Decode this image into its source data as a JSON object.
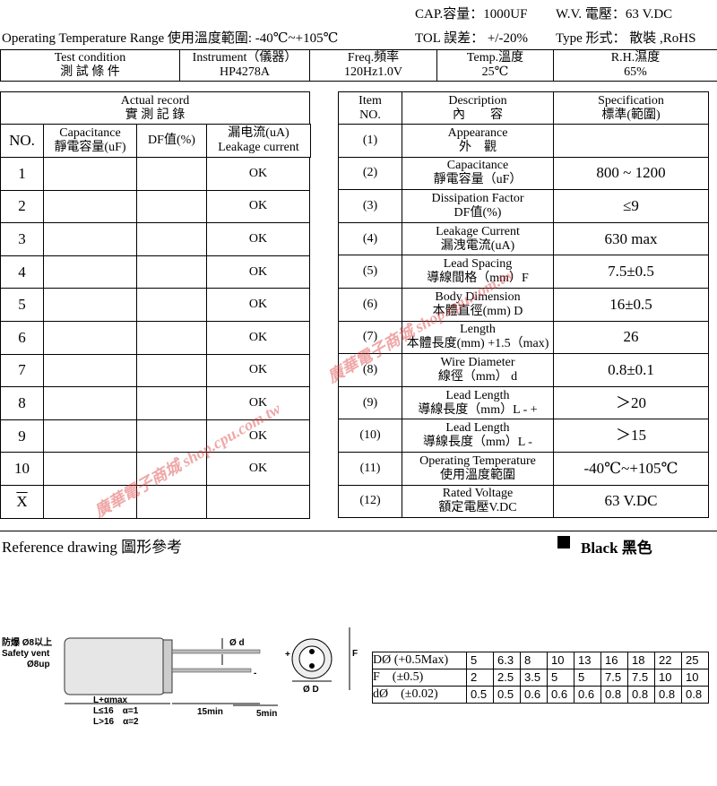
{
  "header": {
    "cap": "CAP.容量：1000UF",
    "wv": "W.V. 電壓：63 V.DC",
    "op_temp": "Operating Temperature Range 使用溫度範圍:  -40℃~+105℃",
    "tol": "TOL 誤差：  +/-20%",
    "type": "Type 形式： 散裝 ,RoHS"
  },
  "conditions": [
    [
      "Test condition",
      "測 試 條 件"
    ],
    [
      "Instrument（儀器）",
      "HP4278A"
    ],
    [
      "Freq.頻率",
      "120Hz1.0V"
    ],
    [
      "Temp.溫度",
      "25℃"
    ],
    [
      "R.H.濕度",
      "65%"
    ]
  ],
  "record": {
    "title": [
      "Actual record",
      "實 測 記 錄"
    ],
    "columns": [
      [
        "NO."
      ],
      [
        "Capacitance",
        "靜電容量(uF)"
      ],
      [
        "DF值(%)"
      ],
      [
        "漏电流(uA)",
        "Leakage current"
      ]
    ],
    "rows": [
      {
        "no": "1",
        "leakage": "OK"
      },
      {
        "no": "2",
        "leakage": "OK"
      },
      {
        "no": "3",
        "leakage": "OK"
      },
      {
        "no": "4",
        "leakage": "OK"
      },
      {
        "no": "5",
        "leakage": "OK"
      },
      {
        "no": "6",
        "leakage": "OK"
      },
      {
        "no": "7",
        "leakage": "OK"
      },
      {
        "no": "8",
        "leakage": "OK"
      },
      {
        "no": "9",
        "leakage": "OK"
      },
      {
        "no": "10",
        "leakage": "OK"
      }
    ],
    "mean": "X"
  },
  "spec": {
    "columns": [
      [
        "Item",
        "NO."
      ],
      [
        "Description",
        "內　　容"
      ],
      [
        "Specification",
        "標準(範圍)"
      ]
    ],
    "rows": [
      {
        "no": "(1)",
        "desc": [
          "Appearance",
          "外　觀"
        ]
      },
      {
        "no": "(2)",
        "desc": [
          "Capacitance",
          "靜電容量（uF）"
        ],
        "spec": "800 ~ 1200"
      },
      {
        "no": "(3)",
        "desc": [
          "Dissipation Factor",
          "DF值(%)"
        ],
        "spec": "≤9"
      },
      {
        "no": "(4)",
        "desc": [
          "Leakage Current",
          "漏洩電流(uA)"
        ],
        "spec": "630 max"
      },
      {
        "no": "(5)",
        "desc": [
          "Lead Spacing",
          "導線間格（mm）F"
        ],
        "spec": "7.5±0.5"
      },
      {
        "no": "(6)",
        "desc": [
          "Body Dimension",
          "本體直徑(mm) D"
        ],
        "spec": "16±0.5"
      },
      {
        "no": "(7)",
        "desc": [
          "Length",
          "本體長度(mm) +1.5（max)"
        ],
        "spec": "26"
      },
      {
        "no": "(8)",
        "desc": [
          "Wire Diameter",
          "線徑（mm） d"
        ],
        "spec": "0.8±0.1"
      },
      {
        "no": "(9)",
        "desc": [
          "Lead Length",
          "導線長度（mm）L - +"
        ],
        "spec": "＞20"
      },
      {
        "no": "(10)",
        "desc": [
          "Lead Length",
          "導線長度（mm）L -"
        ],
        "spec": "＞15"
      },
      {
        "no": "(11)",
        "desc": [
          "Operating Temperature",
          "使用溫度範圍"
        ],
        "spec": "-40℃~+105℃"
      },
      {
        "no": "(12)",
        "desc": [
          "Rated Voltage",
          "額定電壓V.DC"
        ],
        "spec": "63 V.DC"
      }
    ]
  },
  "watermark": "廣華電子商城 shop.cpu.com.tw",
  "reference": {
    "title": "Reference drawing 圖形參考",
    "color": "Black 黑色",
    "labels": {
      "vent1": "防爆 Ø8以上",
      "vent2": "Safety vent",
      "vent3": "Ø8up",
      "length": "L+αmax",
      "l16a": "L≤16　α=1",
      "l16b": "L>16　α=2",
      "min15": "15min",
      "min5": "5min",
      "d": "Ø d",
      "D": "Ø D",
      "F": "F",
      "plus": "+",
      "minus": "-"
    },
    "dims": [
      {
        "label": "DØ (+0.5Max)",
        "values": [
          "5",
          "6.3",
          "8",
          "10",
          "13",
          "16",
          "18",
          "22",
          "25"
        ]
      },
      {
        "label": "F　(±0.5)",
        "values": [
          "2",
          "2.5",
          "3.5",
          "5",
          "5",
          "7.5",
          "7.5",
          "10",
          "10"
        ]
      },
      {
        "label": "dØ　(±0.02)",
        "values": [
          "0.5",
          "0.5",
          "0.6",
          "0.6",
          "0.6",
          "0.8",
          "0.8",
          "0.8",
          "0.8"
        ]
      }
    ]
  }
}
